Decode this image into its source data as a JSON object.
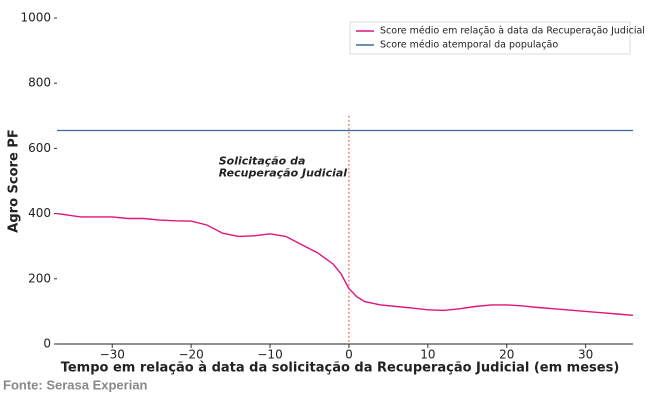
{
  "chart_data": {
    "type": "line",
    "xlabel": "Tempo em relação à data da solicitação da Recuperação Judicial (em meses)",
    "ylabel": "Agro Score PF",
    "source": "Fonte: Serasa Experian",
    "x": [
      -37,
      -34,
      -30,
      -28,
      -26,
      -24,
      -22,
      -20,
      -18,
      -16,
      -14,
      -12,
      -10,
      -8,
      -6,
      -4,
      -2,
      -1,
      0,
      1,
      2,
      4,
      6,
      8,
      10,
      12,
      14,
      16,
      18,
      20,
      22,
      24,
      26,
      28,
      30,
      32,
      34,
      36
    ],
    "series": [
      {
        "name": "Score médio em relação à data da Recuperação Judicial",
        "color": "#e0157a",
        "values": [
          400,
          390,
          390,
          385,
          385,
          380,
          378,
          377,
          365,
          340,
          330,
          332,
          338,
          330,
          305,
          280,
          245,
          215,
          170,
          145,
          130,
          120,
          115,
          110,
          105,
          103,
          108,
          115,
          120,
          120,
          117,
          112,
          108,
          104,
          100,
          96,
          92,
          88
        ]
      }
    ],
    "reference_line": {
      "name": "Score médio atemporal da população",
      "color": "#3a6a9e",
      "value": 655
    },
    "event_line": {
      "x": 0,
      "color": "#e02020"
    },
    "annotation": {
      "lines": [
        "Solicitação da",
        "Recuperação Judicial"
      ],
      "x": -16.5,
      "y": 560,
      "color": "#ff1a1a"
    },
    "xlim": [
      -37,
      36
    ],
    "ylim": [
      0,
      1000
    ],
    "xticks": [
      {
        "value": -30,
        "label": "−30"
      },
      {
        "value": -20,
        "label": "−20"
      },
      {
        "value": -10,
        "label": "−10"
      },
      0,
      10,
      20,
      30
    ],
    "yticks": [
      0,
      200,
      400,
      600,
      800,
      1000
    ],
    "legend": "upper right"
  }
}
